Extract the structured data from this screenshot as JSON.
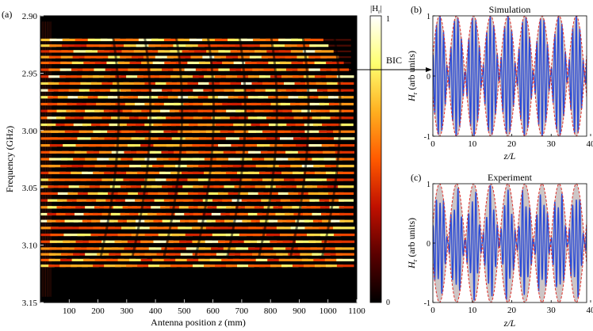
{
  "chart_data": [
    {
      "panel_label": "(a)",
      "type": "heatmap",
      "xlabel_prefix": "Antenna position ",
      "xlabel_var": "z",
      "xlabel_suffix": " (mm)",
      "ylabel": "Frequency (GHz)",
      "xlim": [
        0,
        1100
      ],
      "ylim": [
        2.9,
        3.15
      ],
      "y_inverted": true,
      "x_ticks": [
        "100",
        "200",
        "300",
        "400",
        "500",
        "600",
        "700",
        "800",
        "900",
        "1000",
        "1100"
      ],
      "y_ticks": [
        "2.90",
        "2.95",
        "3.00",
        "3.05",
        "3.10",
        "3.15"
      ],
      "colorbar": {
        "label": "|H",
        "label_sub": "r",
        "label_end": "|",
        "ticks": [
          "1",
          "0"
        ],
        "range": [
          0,
          1
        ],
        "colors": [
          "#000000",
          "#5a0000",
          "#c01000",
          "#ff5a00",
          "#ffb020",
          "#ffff70",
          "#ffffff"
        ]
      },
      "annotation": {
        "text": "BIC",
        "frequency": 2.947
      },
      "resonance_frequencies": [
        2.921,
        2.926,
        2.931,
        2.936,
        2.941,
        2.947,
        2.953,
        2.959,
        2.965,
        2.971,
        2.977,
        2.983,
        2.989,
        2.995,
        3.001,
        3.007,
        3.013,
        3.019,
        3.025,
        3.031,
        3.037,
        3.043,
        3.049,
        3.055,
        3.061,
        3.067,
        3.073,
        3.079,
        3.085,
        3.091,
        3.097,
        3.103,
        3.108,
        3.113,
        3.118
      ],
      "grid": false
    },
    {
      "panel_label": "(b)",
      "title": "Simulation",
      "type": "line",
      "xlabel_var": "z",
      "xlabel_rest": "/L",
      "ylabel_var": "H",
      "ylabel_sub": "r",
      "ylabel_rest": " (arb units)",
      "xlim": [
        0,
        39
      ],
      "ylim": [
        -1,
        1
      ],
      "x_ticks": [
        "0",
        "10",
        "20",
        "30",
        "40"
      ],
      "y_ticks": [
        "1",
        "0",
        "-1"
      ],
      "envelope_periods": 9,
      "carrier_periods_per_unit": 0.5,
      "series": [
        {
          "color": "#2b4bd6"
        }
      ],
      "envelope_color": "#e0302a",
      "fill_color": "#c4bcbc"
    },
    {
      "panel_label": "(c)",
      "title": "Experiment",
      "type": "line",
      "xlabel_var": "z",
      "xlabel_rest": "/L",
      "ylabel_var": "H",
      "ylabel_sub": "r",
      "ylabel_rest": " (arb units)",
      "xlim": [
        0,
        39
      ],
      "ylim": [
        -1,
        1
      ],
      "x_ticks": [
        "0",
        "10",
        "20",
        "30",
        "40"
      ],
      "y_ticks": [
        "1",
        "0",
        "-1"
      ],
      "envelope_periods": 9,
      "carrier_periods_per_unit": 0.5,
      "series": [
        {
          "color": "#2b4bd6"
        }
      ],
      "envelope_color": "#e0302a",
      "fill_color": "#c4bcbc"
    }
  ]
}
